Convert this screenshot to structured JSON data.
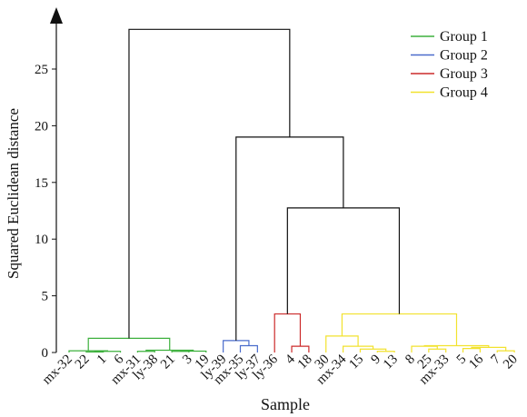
{
  "chart_data": {
    "type": "dendrogram",
    "ylabel": "Squared Euclidean distance",
    "xlabel": "Sample",
    "ylim": [
      0,
      30
    ],
    "yticks": [
      0,
      5,
      10,
      15,
      20,
      25
    ],
    "legend": "upper right",
    "leaves": [
      "mx-32",
      "22",
      "1",
      "6",
      "mx-31",
      "ly-38",
      "21",
      "3",
      "19",
      "ly-39",
      "mx-35",
      "ly-37",
      "ly-36",
      "4",
      "18",
      "30",
      "mx-34",
      "15",
      "9",
      "13",
      "8",
      "25",
      "mx-33",
      "5",
      "16",
      "7",
      "20"
    ],
    "series": [
      {
        "name": "Group 1",
        "color": "#3db03d"
      },
      {
        "name": "Group 2",
        "color": "#4a6ccc"
      },
      {
        "name": "Group 3",
        "color": "#cc2a2a"
      },
      {
        "name": "Group 4",
        "color": "#f2e22e"
      }
    ],
    "links": [
      {
        "children": [
          1,
          2
        ],
        "height": 0.05,
        "color": "#3db03d"
      },
      {
        "children": [
          27,
          3
        ],
        "height": 0.1,
        "color": "#3db03d"
      },
      {
        "children": [
          0,
          28
        ],
        "height": 0.15,
        "color": "#3db03d"
      },
      {
        "children": [
          6,
          7
        ],
        "height": 0.1,
        "color": "#3db03d"
      },
      {
        "children": [
          30,
          8
        ],
        "height": 0.12,
        "color": "#3db03d"
      },
      {
        "children": [
          4,
          5
        ],
        "height": 0.1,
        "color": "#3db03d"
      },
      {
        "children": [
          32,
          31
        ],
        "height": 0.2,
        "color": "#3db03d"
      },
      {
        "children": [
          29,
          33
        ],
        "height": 1.25,
        "color": "#3db03d"
      },
      {
        "children": [
          10,
          11
        ],
        "height": 0.6,
        "color": "#4a6ccc"
      },
      {
        "children": [
          9,
          35
        ],
        "height": 1.05,
        "color": "#4a6ccc"
      },
      {
        "children": [
          13,
          14
        ],
        "height": 0.55,
        "color": "#cc2a2a"
      },
      {
        "children": [
          12,
          37
        ],
        "height": 3.4,
        "color": "#cc2a2a"
      },
      {
        "children": [
          18,
          19
        ],
        "height": 0.1,
        "color": "#f2e22e"
      },
      {
        "children": [
          17,
          39
        ],
        "height": 0.3,
        "color": "#f2e22e"
      },
      {
        "children": [
          16,
          40
        ],
        "height": 0.55,
        "color": "#f2e22e"
      },
      {
        "children": [
          15,
          41
        ],
        "height": 1.45,
        "color": "#f2e22e"
      },
      {
        "children": [
          21,
          22
        ],
        "height": 0.3,
        "color": "#f2e22e"
      },
      {
        "children": [
          20,
          43
        ],
        "height": 0.55,
        "color": "#f2e22e"
      },
      {
        "children": [
          23,
          24
        ],
        "height": 0.35,
        "color": "#f2e22e"
      },
      {
        "children": [
          25,
          26
        ],
        "height": 0.15,
        "color": "#f2e22e"
      },
      {
        "children": [
          45,
          46
        ],
        "height": 0.45,
        "color": "#f2e22e"
      },
      {
        "children": [
          44,
          47
        ],
        "height": 0.6,
        "color": "#f2e22e"
      },
      {
        "children": [
          42,
          48
        ],
        "height": 3.4,
        "color": "#f2e22e"
      },
      {
        "children": [
          38,
          49
        ],
        "height": 12.75,
        "color": "#111111"
      },
      {
        "children": [
          36,
          50
        ],
        "height": 19.0,
        "color": "#111111"
      },
      {
        "children": [
          34,
          51
        ],
        "height": 28.5,
        "color": "#111111"
      }
    ]
  }
}
